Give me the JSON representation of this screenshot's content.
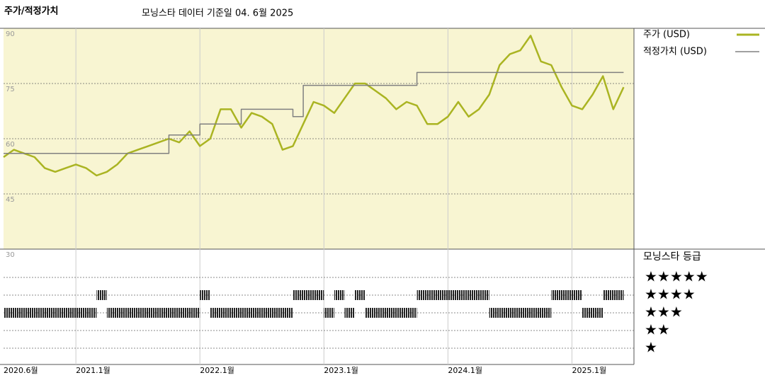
{
  "chart_data": {
    "type": "line",
    "title": "주가/적정가치",
    "subtitle": "모닝스타 데이터 기준일 04. 6월 2025",
    "xlim": [
      "2020-06",
      "2025-07"
    ],
    "xticks": [
      {
        "value": "2020-06",
        "label": "2020.6월"
      },
      {
        "value": "2021-01",
        "label": "2021.1월"
      },
      {
        "value": "2022-01",
        "label": "2022.1월"
      },
      {
        "value": "2023-01",
        "label": "2023.1월"
      },
      {
        "value": "2024-01",
        "label": "2024.1월"
      },
      {
        "value": "2025-01",
        "label": "2025.1월"
      }
    ],
    "ylim": [
      30,
      90
    ],
    "yticks": [
      30,
      45,
      60,
      75,
      90
    ],
    "grid": true,
    "background": "#f8f5d2",
    "series": [
      {
        "name": "주가 (USD)",
        "color": "#aab422",
        "x": [
          "2020-06",
          "2020-07",
          "2020-08",
          "2020-09",
          "2020-10",
          "2020-11",
          "2020-12",
          "2021-01",
          "2021-02",
          "2021-03",
          "2021-04",
          "2021-05",
          "2021-06",
          "2021-07",
          "2021-08",
          "2021-09",
          "2021-10",
          "2021-11",
          "2021-12",
          "2022-01",
          "2022-02",
          "2022-03",
          "2022-04",
          "2022-05",
          "2022-06",
          "2022-07",
          "2022-08",
          "2022-09",
          "2022-10",
          "2022-11",
          "2022-12",
          "2023-01",
          "2023-02",
          "2023-03",
          "2023-04",
          "2023-05",
          "2023-06",
          "2023-07",
          "2023-08",
          "2023-09",
          "2023-10",
          "2023-11",
          "2023-12",
          "2024-01",
          "2024-02",
          "2024-03",
          "2024-04",
          "2024-05",
          "2024-06",
          "2024-07",
          "2024-08",
          "2024-09",
          "2024-10",
          "2024-11",
          "2024-12",
          "2025-01",
          "2025-02",
          "2025-03",
          "2025-04",
          "2025-05",
          "2025-06"
        ],
        "values": [
          55,
          57,
          56,
          55,
          52,
          51,
          52,
          53,
          52,
          50,
          51,
          53,
          56,
          57,
          58,
          59,
          60,
          59,
          62,
          58,
          60,
          68,
          68,
          63,
          67,
          66,
          64,
          57,
          58,
          64,
          70,
          69,
          67,
          71,
          75,
          75,
          73,
          71,
          68,
          70,
          69,
          64,
          64,
          66,
          70,
          66,
          68,
          72,
          80,
          83,
          84,
          88,
          81,
          80,
          74,
          69,
          68,
          72,
          77,
          68,
          74
        ]
      },
      {
        "name": "적정가치 (USD)",
        "color": "#808080",
        "step": "post",
        "x": [
          "2020-06",
          "2021-10",
          "2022-01",
          "2022-05",
          "2022-10",
          "2022-11",
          "2023-10",
          "2025-06"
        ],
        "values": [
          56,
          61,
          64,
          68,
          66,
          74.5,
          78,
          78
        ]
      }
    ],
    "ratings": {
      "title": "모닝스타 등급",
      "levels": [
        "★★★★★",
        "★★★★",
        "★★★",
        "★★",
        "★"
      ],
      "periods": [
        {
          "start": "2020-06",
          "end": "2021-03",
          "stars": 3
        },
        {
          "start": "2021-03",
          "end": "2021-04",
          "stars": 4
        },
        {
          "start": "2021-04",
          "end": "2022-01",
          "stars": 3
        },
        {
          "start": "2022-01",
          "end": "2022-02",
          "stars": 4
        },
        {
          "start": "2022-02",
          "end": "2022-10",
          "stars": 3
        },
        {
          "start": "2022-10",
          "end": "2023-01",
          "stars": 4
        },
        {
          "start": "2023-01",
          "end": "2023-02",
          "stars": 3
        },
        {
          "start": "2023-02",
          "end": "2023-03",
          "stars": 4
        },
        {
          "start": "2023-03",
          "end": "2023-04",
          "stars": 3
        },
        {
          "start": "2023-04",
          "end": "2023-05",
          "stars": 4
        },
        {
          "start": "2023-05",
          "end": "2023-10",
          "stars": 3
        },
        {
          "start": "2023-10",
          "end": "2024-05",
          "stars": 4
        },
        {
          "start": "2024-05",
          "end": "2024-11",
          "stars": 3
        },
        {
          "start": "2024-11",
          "end": "2025-02",
          "stars": 4
        },
        {
          "start": "2025-02",
          "end": "2025-04",
          "stars": 3
        },
        {
          "start": "2025-04",
          "end": "2025-06",
          "stars": 4
        }
      ]
    }
  }
}
